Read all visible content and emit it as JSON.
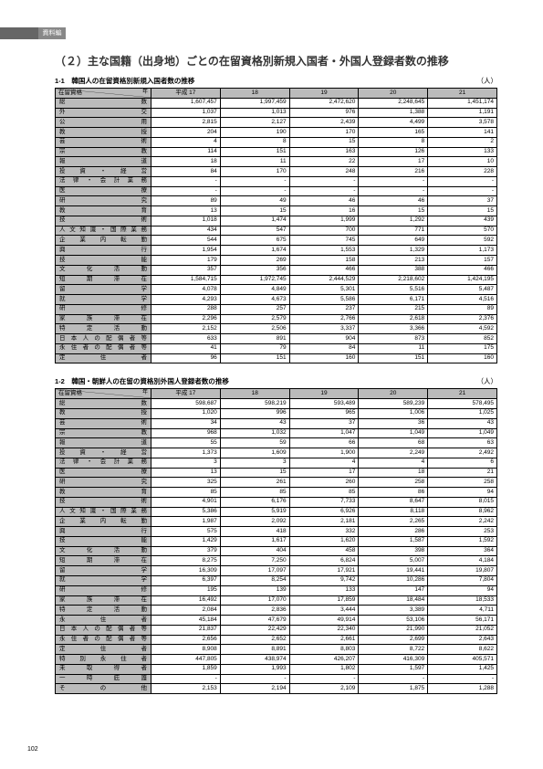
{
  "sideTab": "資料編",
  "sectionHeading": "（２）主な国籍（出身地）ごとの在留資格別新規入国者・外国人登録者数の推移",
  "unitLabel": "（人）",
  "cornerYear": "年",
  "cornerCat": "在留資格",
  "pageNum": "102",
  "table1": {
    "title": "1-1　韓国人の在留資格別新規入国者数の推移",
    "columns": [
      "平成 17",
      "18",
      "19",
      "20",
      "21"
    ],
    "rows": [
      {
        "label": "総数",
        "v": [
          "1,607,457",
          "1,997,459",
          "2,472,620",
          "2,248,645",
          "1,451,174"
        ]
      },
      {
        "label": "外交",
        "v": [
          "1,037",
          "1,013",
          "976",
          "1,388",
          "1,191"
        ]
      },
      {
        "label": "公用",
        "v": [
          "2,815",
          "2,127",
          "2,439",
          "4,499",
          "3,578"
        ]
      },
      {
        "label": "教授",
        "v": [
          "204",
          "190",
          "170",
          "165",
          "141"
        ]
      },
      {
        "label": "芸術",
        "v": [
          "4",
          "8",
          "15",
          "8",
          "2"
        ]
      },
      {
        "label": "宗教",
        "v": [
          "114",
          "151",
          "163",
          "126",
          "133"
        ]
      },
      {
        "label": "報道",
        "v": [
          "18",
          "11",
          "22",
          "17",
          "10"
        ]
      },
      {
        "label": "投資・経営",
        "v": [
          "84",
          "170",
          "248",
          "216",
          "228"
        ]
      },
      {
        "label": "法律・会計業務",
        "v": [
          "-",
          "-",
          "-",
          "-",
          "-"
        ]
      },
      {
        "label": "医療",
        "v": [
          "-",
          "-",
          "-",
          "-",
          "-"
        ]
      },
      {
        "label": "研究",
        "v": [
          "89",
          "49",
          "46",
          "46",
          "37"
        ]
      },
      {
        "label": "教育",
        "v": [
          "13",
          "15",
          "16",
          "15",
          "15"
        ]
      },
      {
        "label": "技術",
        "v": [
          "1,018",
          "1,474",
          "1,999",
          "1,292",
          "439"
        ]
      },
      {
        "label": "人文知識・国際業務",
        "v": [
          "434",
          "547",
          "700",
          "771",
          "570"
        ]
      },
      {
        "label": "企業内転勤",
        "v": [
          "544",
          "675",
          "745",
          "649",
          "592"
        ]
      },
      {
        "label": "興行",
        "v": [
          "1,954",
          "1,674",
          "1,553",
          "1,329",
          "1,173"
        ]
      },
      {
        "label": "技能",
        "v": [
          "179",
          "269",
          "158",
          "213",
          "157"
        ]
      },
      {
        "label": "文化活動",
        "v": [
          "357",
          "356",
          "466",
          "388",
          "466"
        ]
      },
      {
        "label": "短期滞在",
        "v": [
          "1,584,715",
          "1,972,745",
          "2,444,529",
          "2,218,602",
          "1,424,195"
        ]
      },
      {
        "label": "留学",
        "v": [
          "4,078",
          "4,849",
          "5,301",
          "5,516",
          "5,487"
        ]
      },
      {
        "label": "就学",
        "v": [
          "4,293",
          "4,673",
          "5,586",
          "6,171",
          "4,516"
        ]
      },
      {
        "label": "研修",
        "v": [
          "288",
          "257",
          "237",
          "215",
          "89"
        ]
      },
      {
        "label": "家族滞在",
        "v": [
          "2,296",
          "2,579",
          "2,766",
          "2,618",
          "2,376"
        ]
      },
      {
        "label": "特定活動",
        "v": [
          "2,152",
          "2,506",
          "3,337",
          "3,366",
          "4,592"
        ]
      },
      {
        "label": "日本人の配偶者等",
        "v": [
          "633",
          "891",
          "904",
          "873",
          "852"
        ]
      },
      {
        "label": "永住者の配偶者等",
        "v": [
          "41",
          "79",
          "84",
          "11",
          "175"
        ]
      },
      {
        "label": "定住者",
        "v": [
          "96",
          "151",
          "160",
          "151",
          "160"
        ]
      }
    ]
  },
  "table2": {
    "title": "1-2　韓国・朝鮮人の在留の資格別外国人登録者数の推移",
    "columns": [
      "平成 17",
      "18",
      "19",
      "20",
      "21"
    ],
    "rows": [
      {
        "label": "総数",
        "v": [
          "598,687",
          "598,219",
          "593,489",
          "589,239",
          "578,495"
        ]
      },
      {
        "label": "教授",
        "v": [
          "1,020",
          "996",
          "965",
          "1,006",
          "1,025"
        ]
      },
      {
        "label": "芸術",
        "v": [
          "34",
          "43",
          "37",
          "36",
          "43"
        ]
      },
      {
        "label": "宗教",
        "v": [
          "968",
          "1,032",
          "1,047",
          "1,049",
          "1,049"
        ]
      },
      {
        "label": "報道",
        "v": [
          "55",
          "59",
          "66",
          "68",
          "63"
        ]
      },
      {
        "label": "投資・経営",
        "v": [
          "1,373",
          "1,609",
          "1,900",
          "2,249",
          "2,492"
        ]
      },
      {
        "label": "法律・会計業務",
        "v": [
          "3",
          "3",
          "4",
          "4",
          "6"
        ]
      },
      {
        "label": "医療",
        "v": [
          "13",
          "15",
          "17",
          "18",
          "21"
        ]
      },
      {
        "label": "研究",
        "v": [
          "325",
          "261",
          "260",
          "258",
          "258"
        ]
      },
      {
        "label": "教育",
        "v": [
          "85",
          "85",
          "85",
          "86",
          "94"
        ]
      },
      {
        "label": "技術",
        "v": [
          "4,901",
          "6,176",
          "7,733",
          "8,647",
          "8,015"
        ]
      },
      {
        "label": "人文知識・国際業務",
        "v": [
          "5,386",
          "5,919",
          "6,926",
          "8,118",
          "8,962"
        ]
      },
      {
        "label": "企業内転勤",
        "v": [
          "1,987",
          "2,092",
          "2,181",
          "2,265",
          "2,242"
        ]
      },
      {
        "label": "興行",
        "v": [
          "575",
          "418",
          "332",
          "286",
          "253"
        ]
      },
      {
        "label": "技能",
        "v": [
          "1,429",
          "1,617",
          "1,620",
          "1,587",
          "1,592"
        ]
      },
      {
        "label": "文化活動",
        "v": [
          "379",
          "404",
          "458",
          "398",
          "364"
        ]
      },
      {
        "label": "短期滞在",
        "v": [
          "8,275",
          "7,250",
          "6,824",
          "5,007",
          "4,184"
        ]
      },
      {
        "label": "留学",
        "v": [
          "16,309",
          "17,097",
          "17,921",
          "19,441",
          "19,807"
        ]
      },
      {
        "label": "就学",
        "v": [
          "6,397",
          "8,254",
          "9,742",
          "10,286",
          "7,804"
        ]
      },
      {
        "label": "研修",
        "v": [
          "195",
          "139",
          "133",
          "147",
          "94"
        ]
      },
      {
        "label": "家族滞在",
        "v": [
          "16,492",
          "17,070",
          "17,859",
          "18,484",
          "18,533"
        ]
      },
      {
        "label": "特定活動",
        "v": [
          "2,084",
          "2,836",
          "3,444",
          "3,389",
          "4,711"
        ]
      },
      {
        "label": "永住者",
        "v": [
          "45,184",
          "47,679",
          "49,914",
          "53,106",
          "56,171"
        ]
      },
      {
        "label": "日本人の配偶者等",
        "v": [
          "21,837",
          "22,429",
          "22,340",
          "21,990",
          "21,052"
        ]
      },
      {
        "label": "永住者の配偶者等",
        "v": [
          "2,656",
          "2,652",
          "2,661",
          "2,699",
          "2,643"
        ]
      },
      {
        "label": "定住者",
        "v": [
          "8,908",
          "8,891",
          "8,803",
          "8,722",
          "8,622"
        ]
      },
      {
        "label": "特別永住者",
        "v": [
          "447,805",
          "438,974",
          "426,207",
          "416,309",
          "405,571"
        ]
      },
      {
        "label": "未取得者",
        "v": [
          "1,859",
          "1,993",
          "1,802",
          "1,597",
          "1,425"
        ]
      },
      {
        "label": "一時庇護",
        "v": [
          "-",
          "-",
          "-",
          "-",
          "-"
        ]
      },
      {
        "label": "その他",
        "v": [
          "2,153",
          "2,194",
          "2,109",
          "1,875",
          "1,288"
        ]
      }
    ]
  },
  "colors": {
    "headerBg": "#bbbbbb",
    "border": "#000000",
    "background": "#ffffff",
    "sideTabBg": "#888888",
    "topBarBg": "#666666"
  }
}
